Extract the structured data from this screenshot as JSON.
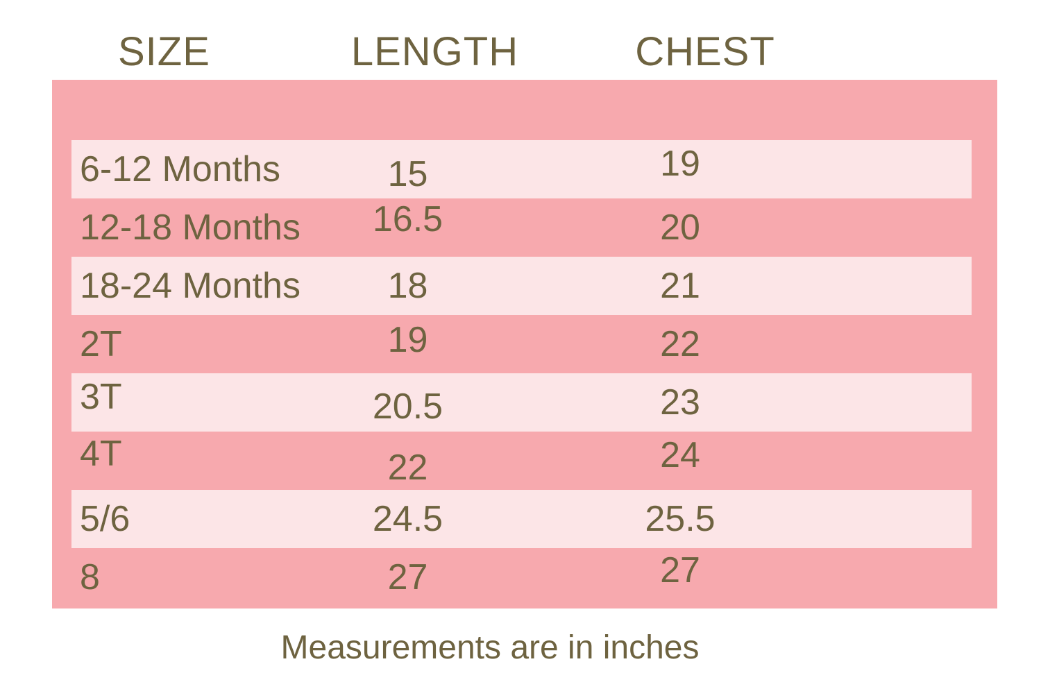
{
  "colors": {
    "panel": "#F7A9AE",
    "stripe": "#FCE5E7",
    "text": "#6E6340",
    "background": "#FFFFFF"
  },
  "chart_data": {
    "type": "table",
    "columns": [
      "SIZE",
      "LENGTH",
      "CHEST"
    ],
    "rows": [
      [
        "6-12 Months",
        15,
        19
      ],
      [
        "12-18 Months",
        16.5,
        20
      ],
      [
        "18-24 Months",
        18,
        21
      ],
      [
        "2T",
        19,
        22
      ],
      [
        "3T",
        20.5,
        23
      ],
      [
        "4T",
        22,
        24
      ],
      [
        "5/6",
        24.5,
        25.5
      ],
      [
        "8",
        27,
        27
      ]
    ],
    "note": "Measurements are in inches",
    "units": "inches"
  }
}
